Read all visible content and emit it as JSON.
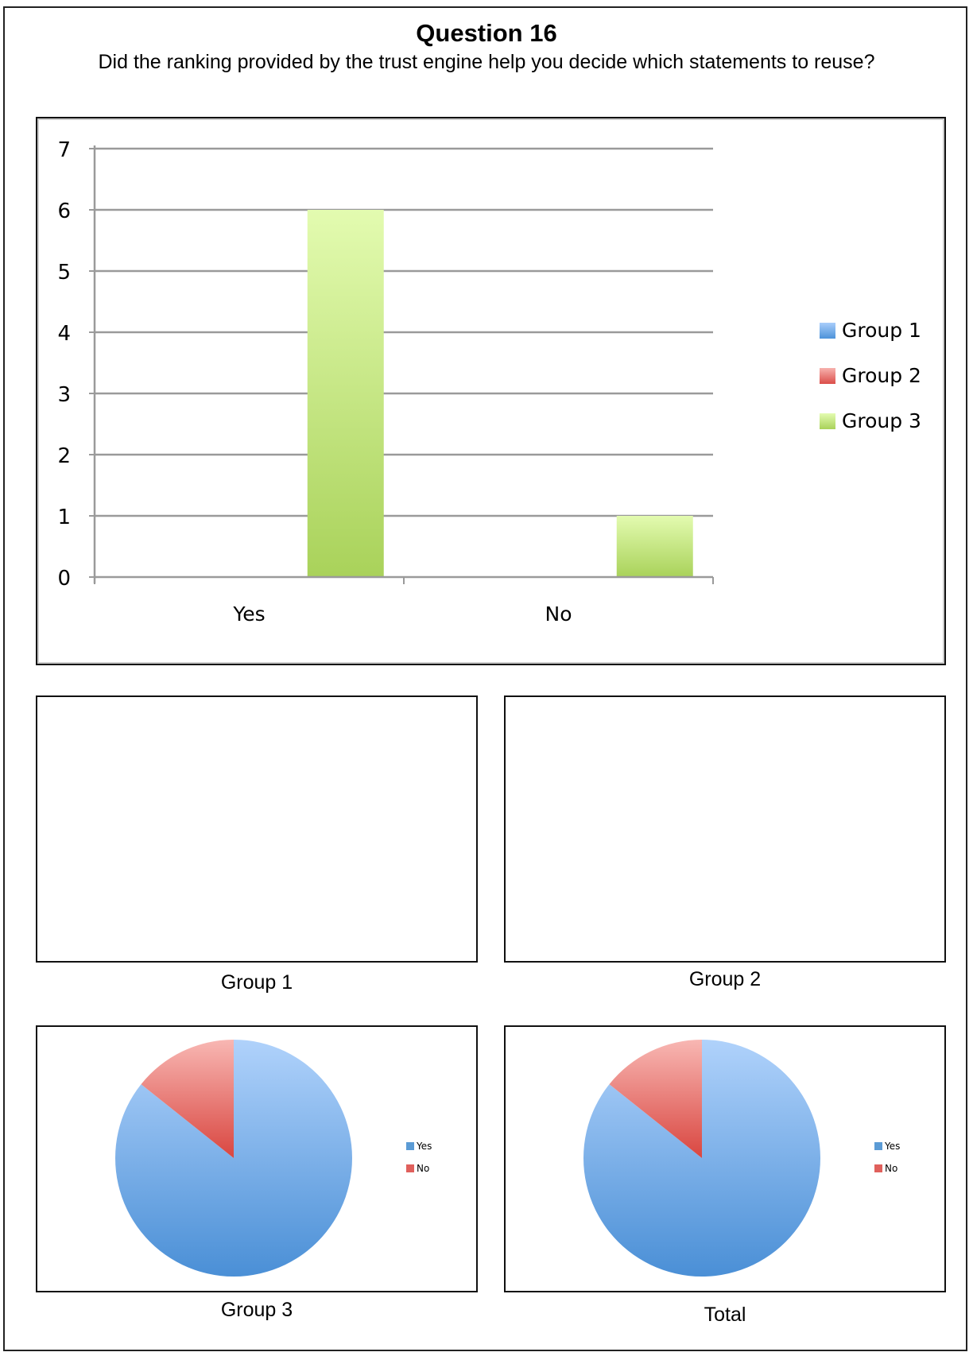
{
  "page": {
    "title": "Question 16",
    "question": "Did the ranking provided by the trust engine help you decide which statements to reuse?"
  },
  "chart_data": [
    {
      "type": "bar",
      "categories": [
        "Yes",
        "No"
      ],
      "series": [
        {
          "name": "Group 1",
          "values": [
            0,
            0
          ],
          "color": "#5b9bd5"
        },
        {
          "name": "Group 2",
          "values": [
            0,
            0
          ],
          "color": "#e0605c"
        },
        {
          "name": "Group 3",
          "values": [
            6,
            1
          ],
          "color": "#a9d25a"
        }
      ],
      "ylim": [
        0,
        7
      ],
      "yticks": [
        0,
        1,
        2,
        3,
        4,
        5,
        6,
        7
      ],
      "grid": true,
      "legend": "right"
    },
    {
      "type": "pie",
      "title": "Group 1",
      "slices": []
    },
    {
      "type": "pie",
      "title": "Group 2",
      "slices": []
    },
    {
      "type": "pie",
      "title": "Group 3",
      "slices": [
        {
          "label": "Yes",
          "value": 6,
          "color": "#5b9bd5"
        },
        {
          "label": "No",
          "value": 1,
          "color": "#e0605c"
        }
      ],
      "legend": "right"
    },
    {
      "type": "pie",
      "title": "Total",
      "slices": [
        {
          "label": "Yes",
          "value": 6,
          "color": "#5b9bd5"
        },
        {
          "label": "No",
          "value": 1,
          "color": "#e0605c"
        }
      ],
      "legend": "right"
    }
  ]
}
